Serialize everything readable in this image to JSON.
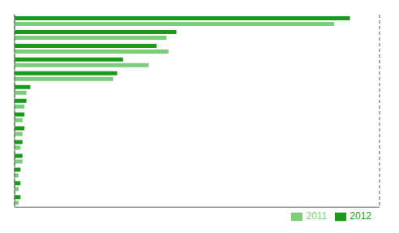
{
  "chart_data": {
    "type": "bar",
    "orientation": "horizontal",
    "categories": [
      null,
      null,
      null,
      null,
      null,
      null,
      null,
      null,
      null,
      null,
      null,
      null,
      null,
      null
    ],
    "series": [
      {
        "name": "2012",
        "color": "#1a9a1a",
        "values": [
          170,
          82,
          72,
          55,
          52,
          8,
          6,
          5,
          5,
          4,
          4,
          3,
          3,
          3
        ]
      },
      {
        "name": "2011",
        "color": "#7dcc7d",
        "values": [
          162,
          77,
          78,
          68,
          50,
          6,
          5,
          4,
          4,
          3,
          4,
          2,
          2,
          2
        ]
      }
    ],
    "xlim": [
      0,
      185
    ],
    "xticks": [
      30,
      60,
      90,
      120,
      150,
      180
    ],
    "grid": true,
    "legend": "lower right",
    "tick_labels": false
  }
}
